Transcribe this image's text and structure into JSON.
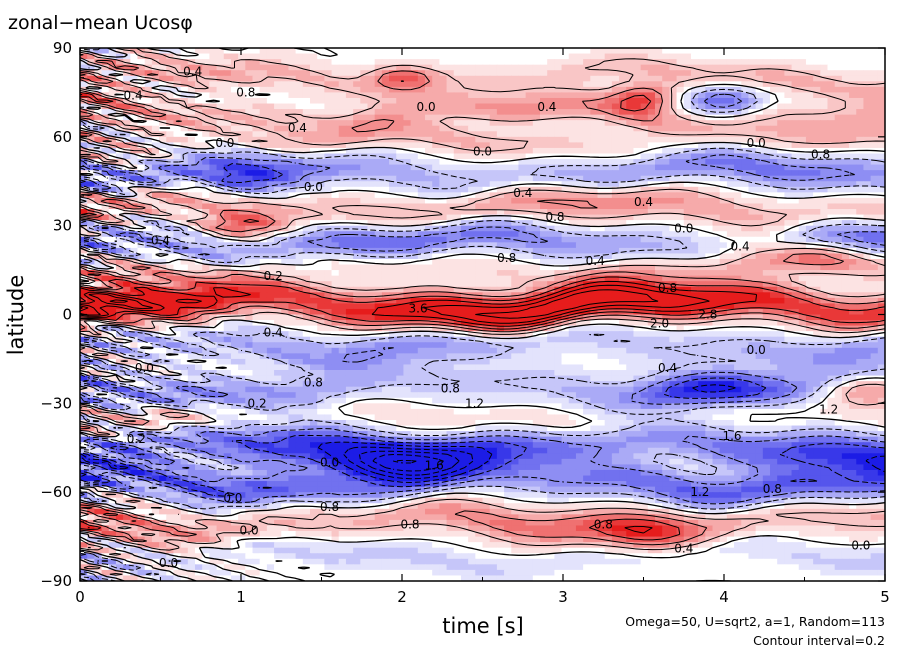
{
  "chart_data": {
    "type": "heatmap",
    "title": "zonal−mean Ucosφ",
    "xlabel": "time [s]",
    "ylabel": "latitude",
    "xlim": [
      0,
      5
    ],
    "ylim": [
      -90,
      90
    ],
    "x_ticks": [
      "0",
      "1",
      "2",
      "3",
      "4",
      "5"
    ],
    "y_ticks": [
      "90",
      "60",
      "30",
      "0",
      "−30",
      "−60",
      "−90"
    ],
    "grid": false,
    "legend": "none",
    "colormap": {
      "negative": "#1c1ce6",
      "zero": "#ffffff",
      "positive": "#e61c1c"
    },
    "contour_interval": 0.2,
    "info_line": "Omega=50, U=sqrt2, a=1, Random=113",
    "interval_line": "Contour interval=0.2",
    "bands": [
      {
        "lat": 80,
        "width": 5,
        "amp": 0.6
      },
      {
        "lat": 68,
        "width": 5,
        "amp": 0.8
      },
      {
        "lat": 58,
        "width": 5,
        "amp": 0.6
      },
      {
        "lat": 48,
        "width": 6,
        "amp": -1.0
      },
      {
        "lat": 36,
        "width": 6,
        "amp": 0.9
      },
      {
        "lat": 24,
        "width": 6,
        "amp": -1.2
      },
      {
        "lat": 16,
        "width": 5,
        "amp": 0.6
      },
      {
        "lat": 3,
        "width": 6,
        "amp": 2.8
      },
      {
        "lat": -10,
        "width": 6,
        "amp": -0.8
      },
      {
        "lat": -25,
        "width": 6,
        "amp": -0.8
      },
      {
        "lat": -35,
        "width": 5,
        "amp": 0.4
      },
      {
        "lat": -45,
        "width": 7,
        "amp": -1.6
      },
      {
        "lat": -57,
        "width": 6,
        "amp": -1.2
      },
      {
        "lat": -70,
        "width": 6,
        "amp": 1.0
      },
      {
        "lat": -82,
        "width": 4,
        "amp": -0.4
      }
    ],
    "blobs": [
      {
        "t": 2.0,
        "lat": 80,
        "sigma_t": 0.2,
        "sigma_lat": 4,
        "amp": 1.0
      },
      {
        "t": 3.5,
        "lat": 73,
        "sigma_t": 0.2,
        "sigma_lat": 5,
        "amp": 1.2
      },
      {
        "t": 4.0,
        "lat": 72,
        "sigma_t": 0.25,
        "sigma_lat": 6,
        "amp": -1.2
      },
      {
        "t": 1.0,
        "lat": 30,
        "sigma_t": 0.25,
        "sigma_lat": 5,
        "amp": 1.0
      },
      {
        "t": 4.4,
        "lat": 20,
        "sigma_t": 0.5,
        "sigma_lat": 6,
        "amp": 0.8
      },
      {
        "t": 3.9,
        "lat": -25,
        "sigma_t": 0.4,
        "sigma_lat": 6,
        "amp": -1.0
      },
      {
        "t": 4.9,
        "lat": -25,
        "sigma_t": 0.3,
        "sigma_lat": 5,
        "amp": 1.0
      },
      {
        "t": 2.0,
        "lat": -50,
        "sigma_t": 0.4,
        "sigma_lat": 6,
        "amp": -1.6
      },
      {
        "t": 3.5,
        "lat": -73,
        "sigma_t": 0.3,
        "sigma_lat": 6,
        "amp": 0.8
      },
      {
        "t": 0.5,
        "lat": -35,
        "sigma_t": 0.3,
        "sigma_lat": 4,
        "amp": 0.8
      },
      {
        "t": 1.0,
        "lat": 45,
        "sigma_t": 0.3,
        "sigma_lat": 5,
        "amp": -1.0
      }
    ],
    "contour_labels": [
      {
        "t": 0.7,
        "lat": 82,
        "text": "0.4"
      },
      {
        "t": 0.33,
        "lat": 74,
        "text": "0.4"
      },
      {
        "t": 1.03,
        "lat": 75,
        "text": "0.8"
      },
      {
        "t": 2.15,
        "lat": 70,
        "text": "0.0"
      },
      {
        "t": 2.9,
        "lat": 70,
        "text": "0.4"
      },
      {
        "t": 1.35,
        "lat": 63,
        "text": "0.4"
      },
      {
        "t": 0.9,
        "lat": 58,
        "text": "0.0"
      },
      {
        "t": 2.5,
        "lat": 55,
        "text": "0.0"
      },
      {
        "t": 4.2,
        "lat": 58,
        "text": "0.0"
      },
      {
        "t": 4.6,
        "lat": 54,
        "text": "0.8"
      },
      {
        "t": 1.45,
        "lat": 43,
        "text": "0.0"
      },
      {
        "t": 2.75,
        "lat": 41,
        "text": "0.4"
      },
      {
        "t": 3.5,
        "lat": 38,
        "text": "0.4"
      },
      {
        "t": 2.95,
        "lat": 33,
        "text": "0.8"
      },
      {
        "t": 3.75,
        "lat": 29,
        "text": "0.0"
      },
      {
        "t": 4.1,
        "lat": 23,
        "text": "0.4"
      },
      {
        "t": 0.5,
        "lat": 25,
        "text": "0.4"
      },
      {
        "t": 2.65,
        "lat": 19,
        "text": "0.8"
      },
      {
        "t": 3.2,
        "lat": 18,
        "text": "0.4"
      },
      {
        "t": 1.2,
        "lat": 13,
        "text": "0.2"
      },
      {
        "t": 3.65,
        "lat": 9,
        "text": "0.8"
      },
      {
        "t": 2.1,
        "lat": 2,
        "text": "3.6"
      },
      {
        "t": 3.6,
        "lat": -3,
        "text": "2.0"
      },
      {
        "t": 3.9,
        "lat": 0,
        "text": "2.8"
      },
      {
        "t": 1.2,
        "lat": -6,
        "text": "0.4"
      },
      {
        "t": 4.2,
        "lat": -12,
        "text": "0.0"
      },
      {
        "t": 3.65,
        "lat": -18,
        "text": "0.4"
      },
      {
        "t": 0.4,
        "lat": -18,
        "text": "0.0"
      },
      {
        "t": 1.45,
        "lat": -23,
        "text": "0.8"
      },
      {
        "t": 2.3,
        "lat": -25,
        "text": "0.8"
      },
      {
        "t": 2.45,
        "lat": -30,
        "text": "1.2"
      },
      {
        "t": 1.1,
        "lat": -30,
        "text": "0.2"
      },
      {
        "t": 4.65,
        "lat": -32,
        "text": "1.2"
      },
      {
        "t": 4.05,
        "lat": -41,
        "text": "1.6"
      },
      {
        "t": 0.35,
        "lat": -42,
        "text": "0.2"
      },
      {
        "t": 1.55,
        "lat": -50,
        "text": "0.0"
      },
      {
        "t": 2.2,
        "lat": -51,
        "text": "1.6"
      },
      {
        "t": 3.85,
        "lat": -60,
        "text": "1.2"
      },
      {
        "t": 4.3,
        "lat": -59,
        "text": "0.8"
      },
      {
        "t": 0.95,
        "lat": -62,
        "text": "0.0"
      },
      {
        "t": 1.55,
        "lat": -65,
        "text": "0.8"
      },
      {
        "t": 1.05,
        "lat": -73,
        "text": "0.0"
      },
      {
        "t": 2.05,
        "lat": -71,
        "text": "0.8"
      },
      {
        "t": 3.25,
        "lat": -71,
        "text": "0.8"
      },
      {
        "t": 3.75,
        "lat": -79,
        "text": "0.4"
      },
      {
        "t": 0.55,
        "lat": -84,
        "text": "0.0"
      },
      {
        "t": 4.85,
        "lat": -78,
        "text": "0.0"
      }
    ]
  }
}
